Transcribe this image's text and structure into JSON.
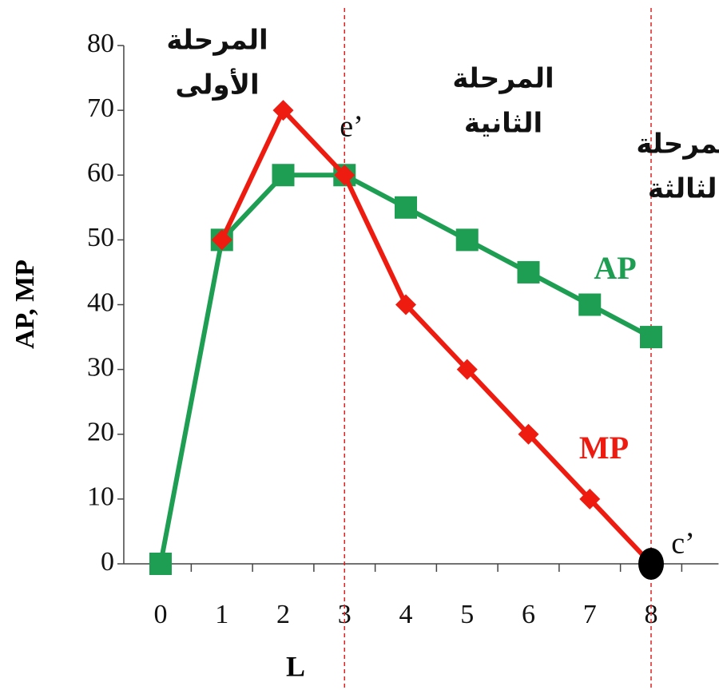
{
  "chart_data": {
    "type": "line",
    "x": [
      0,
      1,
      2,
      3,
      4,
      5,
      6,
      7,
      8
    ],
    "series": [
      {
        "name": "AP",
        "color": "#1e9e52",
        "marker": "square",
        "values": [
          0,
          50,
          60,
          60,
          55,
          50,
          45,
          40,
          35
        ]
      },
      {
        "name": "MP",
        "color": "#ee1c10",
        "marker": "diamond",
        "values": [
          null,
          50,
          70,
          60,
          40,
          30,
          20,
          10,
          0
        ]
      }
    ],
    "xlim": [
      -0.6,
      9.1
    ],
    "ylim": [
      0,
      80
    ],
    "xticks": [
      0,
      1,
      2,
      3,
      4,
      5,
      6,
      7,
      8
    ],
    "yticks": [
      0,
      10,
      20,
      30,
      40,
      50,
      60,
      70,
      80
    ],
    "xlabel": "L",
    "ylabel": "AP, MP",
    "vlines": [
      3,
      8
    ],
    "highlight_point": {
      "x": 8,
      "y": 0
    },
    "annotations": [
      "e’",
      "c’"
    ],
    "stages": [
      [
        "المرحلة",
        "الأولى"
      ],
      [
        "المرحلة",
        "الثانية"
      ],
      [
        "المرحلة",
        "الثالثة"
      ]
    ]
  }
}
